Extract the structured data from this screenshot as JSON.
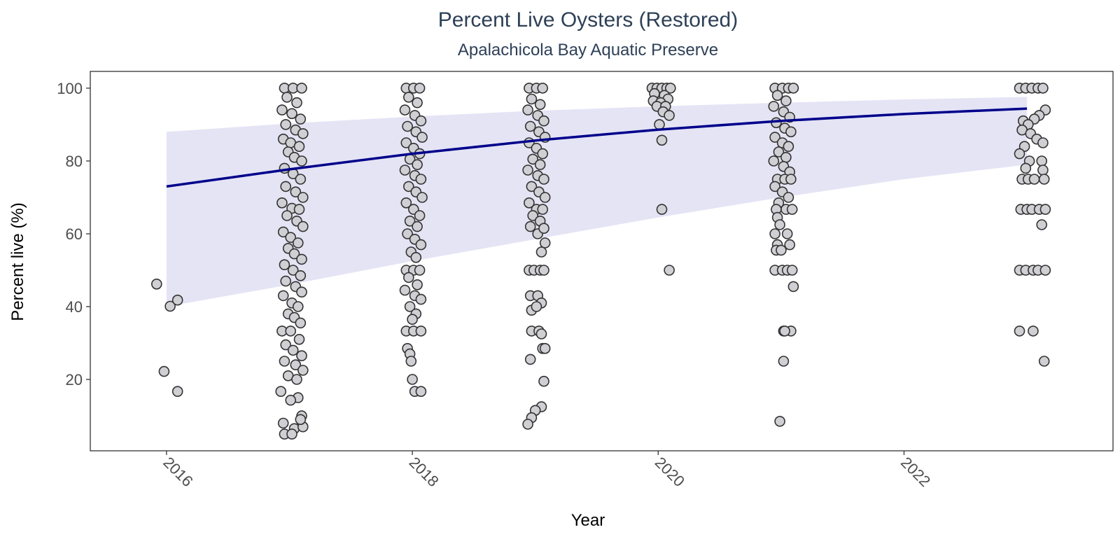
{
  "chart_data": {
    "type": "scatter",
    "title": "Percent Live Oysters (Restored)",
    "subtitle": "Apalachicola Bay Aquatic Preserve",
    "xlabel": "Year",
    "ylabel": "Percent live (%)",
    "xlim": [
      2015.38,
      2023.7
    ],
    "ylim": [
      0.4,
      104.6
    ],
    "x_ticks": [
      2016,
      2018,
      2020,
      2022
    ],
    "y_ticks": [
      20,
      40,
      60,
      80,
      100
    ],
    "grid": false,
    "legend": "none",
    "trend": {
      "x": [
        2016,
        2017,
        2018,
        2019,
        2020,
        2021,
        2022,
        2023
      ],
      "fit": [
        73.0,
        77.7,
        82.0,
        85.6,
        88.6,
        91.0,
        92.9,
        94.4
      ],
      "lower": [
        40.0,
        46.0,
        52.5,
        58.5,
        64.5,
        70.0,
        75.0,
        79.0
      ],
      "upper": [
        88.0,
        90.3,
        92.2,
        93.8,
        95.0,
        96.0,
        96.9,
        97.6
      ]
    },
    "series": [
      {
        "points": [
          [
            2015.92,
            46.2
          ],
          [
            2016.03,
            40.1
          ],
          [
            2016.09,
            41.8
          ],
          [
            2015.98,
            22.2
          ],
          [
            2016.09,
            16.7
          ],
          [
            2016.96,
            100
          ],
          [
            2017.03,
            100
          ],
          [
            2017.1,
            100
          ],
          [
            2016.98,
            97.5
          ],
          [
            2017.06,
            96.0
          ],
          [
            2016.94,
            94.0
          ],
          [
            2017.02,
            93.0
          ],
          [
            2017.09,
            91.5
          ],
          [
            2016.97,
            90.0
          ],
          [
            2017.05,
            88.5
          ],
          [
            2017.11,
            87.5
          ],
          [
            2016.95,
            86.0
          ],
          [
            2017.01,
            85.0
          ],
          [
            2017.08,
            84.0
          ],
          [
            2016.99,
            82.5
          ],
          [
            2017.04,
            81.0
          ],
          [
            2017.1,
            80.0
          ],
          [
            2016.96,
            78.0
          ],
          [
            2017.03,
            76.5
          ],
          [
            2017.09,
            75.0
          ],
          [
            2016.97,
            73.0
          ],
          [
            2017.05,
            71.5
          ],
          [
            2017.11,
            70.0
          ],
          [
            2016.94,
            68.5
          ],
          [
            2017.02,
            67.0
          ],
          [
            2017.08,
            66.7
          ],
          [
            2016.98,
            65.0
          ],
          [
            2017.06,
            63.5
          ],
          [
            2017.11,
            62.0
          ],
          [
            2016.95,
            60.5
          ],
          [
            2017.01,
            59.0
          ],
          [
            2017.07,
            57.5
          ],
          [
            2016.99,
            56.0
          ],
          [
            2017.04,
            54.5
          ],
          [
            2017.1,
            53.0
          ],
          [
            2016.96,
            51.5
          ],
          [
            2017.03,
            50.0
          ],
          [
            2017.09,
            48.5
          ],
          [
            2016.97,
            47.0
          ],
          [
            2017.05,
            45.5
          ],
          [
            2017.1,
            44.0
          ],
          [
            2016.95,
            43.0
          ],
          [
            2017.02,
            41.0
          ],
          [
            2017.07,
            40.0
          ],
          [
            2016.99,
            38.0
          ],
          [
            2017.04,
            37.0
          ],
          [
            2017.09,
            35.5
          ],
          [
            2016.94,
            33.3
          ],
          [
            2017.01,
            33.3
          ],
          [
            2017.08,
            31.0
          ],
          [
            2016.97,
            29.5
          ],
          [
            2017.03,
            28.0
          ],
          [
            2017.1,
            26.5
          ],
          [
            2016.96,
            25.0
          ],
          [
            2017.05,
            24.0
          ],
          [
            2017.11,
            22.5
          ],
          [
            2016.99,
            21.0
          ],
          [
            2017.06,
            20.0
          ],
          [
            2016.93,
            16.7
          ],
          [
            2017.07,
            15.0
          ],
          [
            2017.01,
            14.3
          ],
          [
            2017.1,
            10.0
          ],
          [
            2016.95,
            8.0
          ],
          [
            2017.04,
            6.5
          ],
          [
            2016.96,
            5.0
          ],
          [
            2017.02,
            5.0
          ],
          [
            2017.11,
            7.0
          ],
          [
            2017.09,
            9.0
          ],
          [
            2017.95,
            100
          ],
          [
            2018.01,
            100
          ],
          [
            2018.06,
            100
          ],
          [
            2017.97,
            97.5
          ],
          [
            2018.04,
            96.0
          ],
          [
            2017.94,
            94.0
          ],
          [
            2018.02,
            92.5
          ],
          [
            2018.07,
            91.0
          ],
          [
            2017.96,
            89.5
          ],
          [
            2018.03,
            88.0
          ],
          [
            2018.08,
            86.5
          ],
          [
            2017.95,
            85.0
          ],
          [
            2018.01,
            83.5
          ],
          [
            2018.06,
            82.0
          ],
          [
            2017.98,
            80.5
          ],
          [
            2018.04,
            79.0
          ],
          [
            2017.94,
            77.5
          ],
          [
            2018.02,
            76.0
          ],
          [
            2018.07,
            75.0
          ],
          [
            2017.97,
            73.0
          ],
          [
            2018.03,
            71.5
          ],
          [
            2018.08,
            70.0
          ],
          [
            2017.95,
            68.5
          ],
          [
            2018.01,
            66.7
          ],
          [
            2018.06,
            65.0
          ],
          [
            2017.98,
            63.5
          ],
          [
            2018.04,
            62.0
          ],
          [
            2017.96,
            60.0
          ],
          [
            2018.02,
            58.5
          ],
          [
            2018.07,
            57.0
          ],
          [
            2017.99,
            55.0
          ],
          [
            2018.03,
            53.5
          ],
          [
            2017.95,
            50.0
          ],
          [
            2018.01,
            50.0
          ],
          [
            2018.06,
            50.0
          ],
          [
            2017.97,
            48.0
          ],
          [
            2018.04,
            46.0
          ],
          [
            2017.94,
            44.5
          ],
          [
            2018.02,
            43.0
          ],
          [
            2018.07,
            42.0
          ],
          [
            2017.98,
            40.0
          ],
          [
            2018.03,
            38.0
          ],
          [
            2018.0,
            36.5
          ],
          [
            2017.95,
            33.3
          ],
          [
            2018.01,
            33.3
          ],
          [
            2018.07,
            33.3
          ],
          [
            2017.96,
            28.5
          ],
          [
            2017.98,
            27.0
          ],
          [
            2017.99,
            25.0
          ],
          [
            2018.0,
            20.0
          ],
          [
            2018.02,
            16.7
          ],
          [
            2018.07,
            16.7
          ],
          [
            2018.95,
            100
          ],
          [
            2019.01,
            100
          ],
          [
            2019.06,
            100
          ],
          [
            2018.97,
            97.0
          ],
          [
            2019.04,
            95.5
          ],
          [
            2018.94,
            94.0
          ],
          [
            2019.02,
            92.5
          ],
          [
            2019.07,
            91.0
          ],
          [
            2018.96,
            89.5
          ],
          [
            2019.03,
            88.0
          ],
          [
            2019.08,
            86.5
          ],
          [
            2018.95,
            85.0
          ],
          [
            2019.01,
            83.5
          ],
          [
            2019.06,
            82.0
          ],
          [
            2018.98,
            80.5
          ],
          [
            2019.04,
            79.0
          ],
          [
            2018.94,
            77.5
          ],
          [
            2019.02,
            76.0
          ],
          [
            2019.07,
            75.0
          ],
          [
            2018.97,
            73.0
          ],
          [
            2019.03,
            71.5
          ],
          [
            2019.08,
            70.0
          ],
          [
            2018.95,
            68.5
          ],
          [
            2019.01,
            66.7
          ],
          [
            2019.06,
            66.7
          ],
          [
            2018.98,
            65.0
          ],
          [
            2019.04,
            63.5
          ],
          [
            2018.96,
            62.0
          ],
          [
            2019.02,
            60.0
          ],
          [
            2019.07,
            61.5
          ],
          [
            2019.08,
            57.5
          ],
          [
            2019.05,
            55.0
          ],
          [
            2018.95,
            50.0
          ],
          [
            2018.99,
            50.0
          ],
          [
            2019.04,
            50.0
          ],
          [
            2019.07,
            50.0
          ],
          [
            2018.96,
            43.0
          ],
          [
            2019.02,
            43.0
          ],
          [
            2019.05,
            41.0
          ],
          [
            2018.97,
            39.0
          ],
          [
            2019.01,
            40.0
          ],
          [
            2018.97,
            33.3
          ],
          [
            2019.03,
            33.3
          ],
          [
            2019.05,
            32.5
          ],
          [
            2019.06,
            28.5
          ],
          [
            2019.08,
            28.5
          ],
          [
            2018.96,
            25.5
          ],
          [
            2019.07,
            19.5
          ],
          [
            2019.05,
            12.5
          ],
          [
            2019.0,
            11.5
          ],
          [
            2018.97,
            9.5
          ],
          [
            2018.94,
            7.7
          ],
          [
            2019.95,
            100
          ],
          [
            2019.99,
            100
          ],
          [
            2020.03,
            100
          ],
          [
            2020.07,
            100
          ],
          [
            2020.1,
            100
          ],
          [
            2019.97,
            98.5
          ],
          [
            2020.05,
            98.0
          ],
          [
            2020.08,
            97.0
          ],
          [
            2019.96,
            96.5
          ],
          [
            2020.02,
            96.0
          ],
          [
            2019.99,
            95.0
          ],
          [
            2020.06,
            95.0
          ],
          [
            2020.04,
            93.5
          ],
          [
            2020.09,
            92.5
          ],
          [
            2020.01,
            90.0
          ],
          [
            2020.03,
            85.7
          ],
          [
            2020.03,
            66.7
          ],
          [
            2020.09,
            50.0
          ],
          [
            2020.95,
            100
          ],
          [
            2021.01,
            100
          ],
          [
            2021.06,
            100
          ],
          [
            2021.1,
            100
          ],
          [
            2020.97,
            98.0
          ],
          [
            2021.04,
            96.5
          ],
          [
            2020.94,
            95.0
          ],
          [
            2021.02,
            93.5
          ],
          [
            2021.07,
            92.0
          ],
          [
            2020.96,
            90.5
          ],
          [
            2021.03,
            89.0
          ],
          [
            2021.08,
            88.0
          ],
          [
            2020.95,
            86.5
          ],
          [
            2021.01,
            85.0
          ],
          [
            2021.06,
            84.0
          ],
          [
            2020.98,
            82.5
          ],
          [
            2021.04,
            81.0
          ],
          [
            2020.94,
            80.0
          ],
          [
            2021.02,
            78.5
          ],
          [
            2021.07,
            77.0
          ],
          [
            2020.97,
            75.0
          ],
          [
            2021.03,
            75.0
          ],
          [
            2021.08,
            75.0
          ],
          [
            2020.95,
            73.0
          ],
          [
            2021.01,
            71.5
          ],
          [
            2021.06,
            70.0
          ],
          [
            2020.98,
            68.5
          ],
          [
            2021.04,
            66.7
          ],
          [
            2021.09,
            66.7
          ],
          [
            2020.96,
            66.7
          ],
          [
            2020.97,
            64.5
          ],
          [
            2020.99,
            62.5
          ],
          [
            2020.95,
            60.0
          ],
          [
            2021.05,
            60.0
          ],
          [
            2020.97,
            57.0
          ],
          [
            2021.07,
            57.0
          ],
          [
            2020.96,
            55.5
          ],
          [
            2021.0,
            55.5
          ],
          [
            2020.95,
            50.0
          ],
          [
            2021.01,
            50.0
          ],
          [
            2021.05,
            50.0
          ],
          [
            2021.09,
            50.0
          ],
          [
            2021.1,
            45.5
          ],
          [
            2021.02,
            33.3
          ],
          [
            2021.08,
            33.3
          ],
          [
            2021.03,
            33.3
          ],
          [
            2021.02,
            25.0
          ],
          [
            2020.99,
            8.5
          ],
          [
            2022.94,
            100
          ],
          [
            2022.99,
            100
          ],
          [
            2023.04,
            100
          ],
          [
            2023.09,
            100
          ],
          [
            2023.13,
            100
          ],
          [
            2023.15,
            94.0
          ],
          [
            2023.1,
            92.5
          ],
          [
            2023.06,
            91.5
          ],
          [
            2022.97,
            91.0
          ],
          [
            2023.01,
            90.0
          ],
          [
            2022.96,
            88.5
          ],
          [
            2023.03,
            87.5
          ],
          [
            2023.08,
            86.0
          ],
          [
            2023.13,
            85.0
          ],
          [
            2022.98,
            84.0
          ],
          [
            2022.94,
            82.0
          ],
          [
            2023.02,
            80.0
          ],
          [
            2023.12,
            80.0
          ],
          [
            2022.99,
            78.0
          ],
          [
            2023.13,
            77.5
          ],
          [
            2022.96,
            75.0
          ],
          [
            2023.01,
            75.0
          ],
          [
            2023.06,
            75.0
          ],
          [
            2023.14,
            75.0
          ],
          [
            2022.95,
            66.7
          ],
          [
            2023.0,
            66.7
          ],
          [
            2023.04,
            66.7
          ],
          [
            2023.1,
            66.7
          ],
          [
            2023.15,
            66.7
          ],
          [
            2023.12,
            62.5
          ],
          [
            2022.94,
            50.0
          ],
          [
            2022.99,
            50.0
          ],
          [
            2023.05,
            50.0
          ],
          [
            2023.09,
            50.0
          ],
          [
            2023.15,
            50.0
          ],
          [
            2022.94,
            33.3
          ],
          [
            2023.05,
            33.3
          ],
          [
            2023.14,
            25.0
          ]
        ]
      }
    ]
  },
  "colors": {
    "point_fill": "#cfcfd4",
    "point_stroke": "#333333",
    "trend_line": "#00008b",
    "ribbon": "#e4e4f5",
    "title_text": "#2e4057",
    "panel_border": "#333333"
  }
}
